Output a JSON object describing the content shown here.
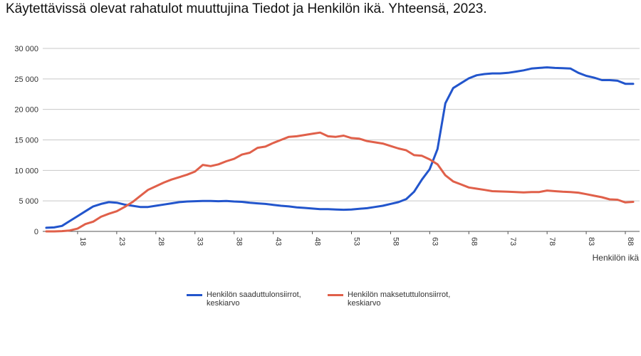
{
  "title": "Käytettävissä olevat rahatulot muuttujina Tiedot ja Henkilön ikä. Yhteensä, 2023.",
  "chart_data": {
    "type": "line",
    "xlabel": "Henkilön ikä",
    "ylabel": "",
    "xlim": [
      14,
      89
    ],
    "ylim": [
      0,
      30000
    ],
    "yticks": [
      0,
      5000,
      10000,
      15000,
      20000,
      25000,
      30000
    ],
    "ytick_labels": [
      "0",
      "5 000",
      "10 000",
      "15 000",
      "20 000",
      "25 000",
      "30 000"
    ],
    "xticks": [
      18,
      23,
      28,
      33,
      38,
      43,
      48,
      53,
      58,
      63,
      68,
      73,
      78,
      83,
      88
    ],
    "xtick_labels": [
      "18",
      "23",
      "28",
      "33",
      "38",
      "43",
      "48",
      "53",
      "58",
      "63",
      "68",
      "73",
      "78",
      "83",
      "88"
    ],
    "grid": true,
    "legend_position": "bottom",
    "x": [
      14,
      15,
      16,
      17,
      18,
      19,
      20,
      21,
      22,
      23,
      24,
      25,
      26,
      27,
      28,
      29,
      30,
      31,
      32,
      33,
      34,
      35,
      36,
      37,
      38,
      39,
      40,
      41,
      42,
      43,
      44,
      45,
      46,
      47,
      48,
      49,
      50,
      51,
      52,
      53,
      54,
      55,
      56,
      57,
      58,
      59,
      60,
      61,
      62,
      63,
      64,
      65,
      66,
      67,
      68,
      69,
      70,
      71,
      72,
      73,
      74,
      75,
      76,
      77,
      78,
      79,
      80,
      81,
      82,
      83,
      84,
      85,
      86,
      87,
      88,
      89
    ],
    "series": [
      {
        "name": "Henkilön saaduttulonsiirrot, keskiarvo",
        "color": "#2255cc",
        "values": [
          600,
          650,
          900,
          1700,
          2500,
          3300,
          4100,
          4500,
          4800,
          4700,
          4400,
          4200,
          4000,
          4000,
          4200,
          4400,
          4600,
          4800,
          4900,
          4950,
          5000,
          5000,
          4950,
          5000,
          4900,
          4850,
          4700,
          4600,
          4500,
          4350,
          4200,
          4100,
          3950,
          3850,
          3750,
          3650,
          3650,
          3600,
          3550,
          3600,
          3700,
          3800,
          4000,
          4200,
          4500,
          4800,
          5300,
          6500,
          8500,
          10200,
          13500,
          21000,
          23500,
          24300,
          25100,
          25600,
          25800,
          25900,
          25900,
          26000,
          26200,
          26400,
          26700,
          26800,
          26900,
          26800,
          26750,
          26700,
          26000,
          25500,
          25200,
          24800,
          24800,
          24700,
          24200,
          24200
        ]
      },
      {
        "name": "Henkilön maksetuttulonsiirrot, keskiarvo",
        "color": "#e0604a",
        "values": [
          0,
          0,
          50,
          150,
          450,
          1200,
          1600,
          2400,
          2900,
          3300,
          4000,
          4800,
          5800,
          6800,
          7400,
          8000,
          8500,
          8900,
          9300,
          9800,
          10900,
          10700,
          11000,
          11500,
          11900,
          12600,
          12900,
          13700,
          13900,
          14500,
          15000,
          15500,
          15600,
          15800,
          16000,
          16200,
          15600,
          15500,
          15700,
          15300,
          15200,
          14800,
          14600,
          14400,
          14000,
          13600,
          13300,
          12500,
          12400,
          11800,
          11000,
          9200,
          8200,
          7700,
          7200,
          7000,
          6800,
          6600,
          6550,
          6500,
          6450,
          6400,
          6450,
          6450,
          6700,
          6600,
          6500,
          6450,
          6350,
          6100,
          5850,
          5600,
          5250,
          5200,
          4750,
          4850
        ]
      }
    ]
  }
}
